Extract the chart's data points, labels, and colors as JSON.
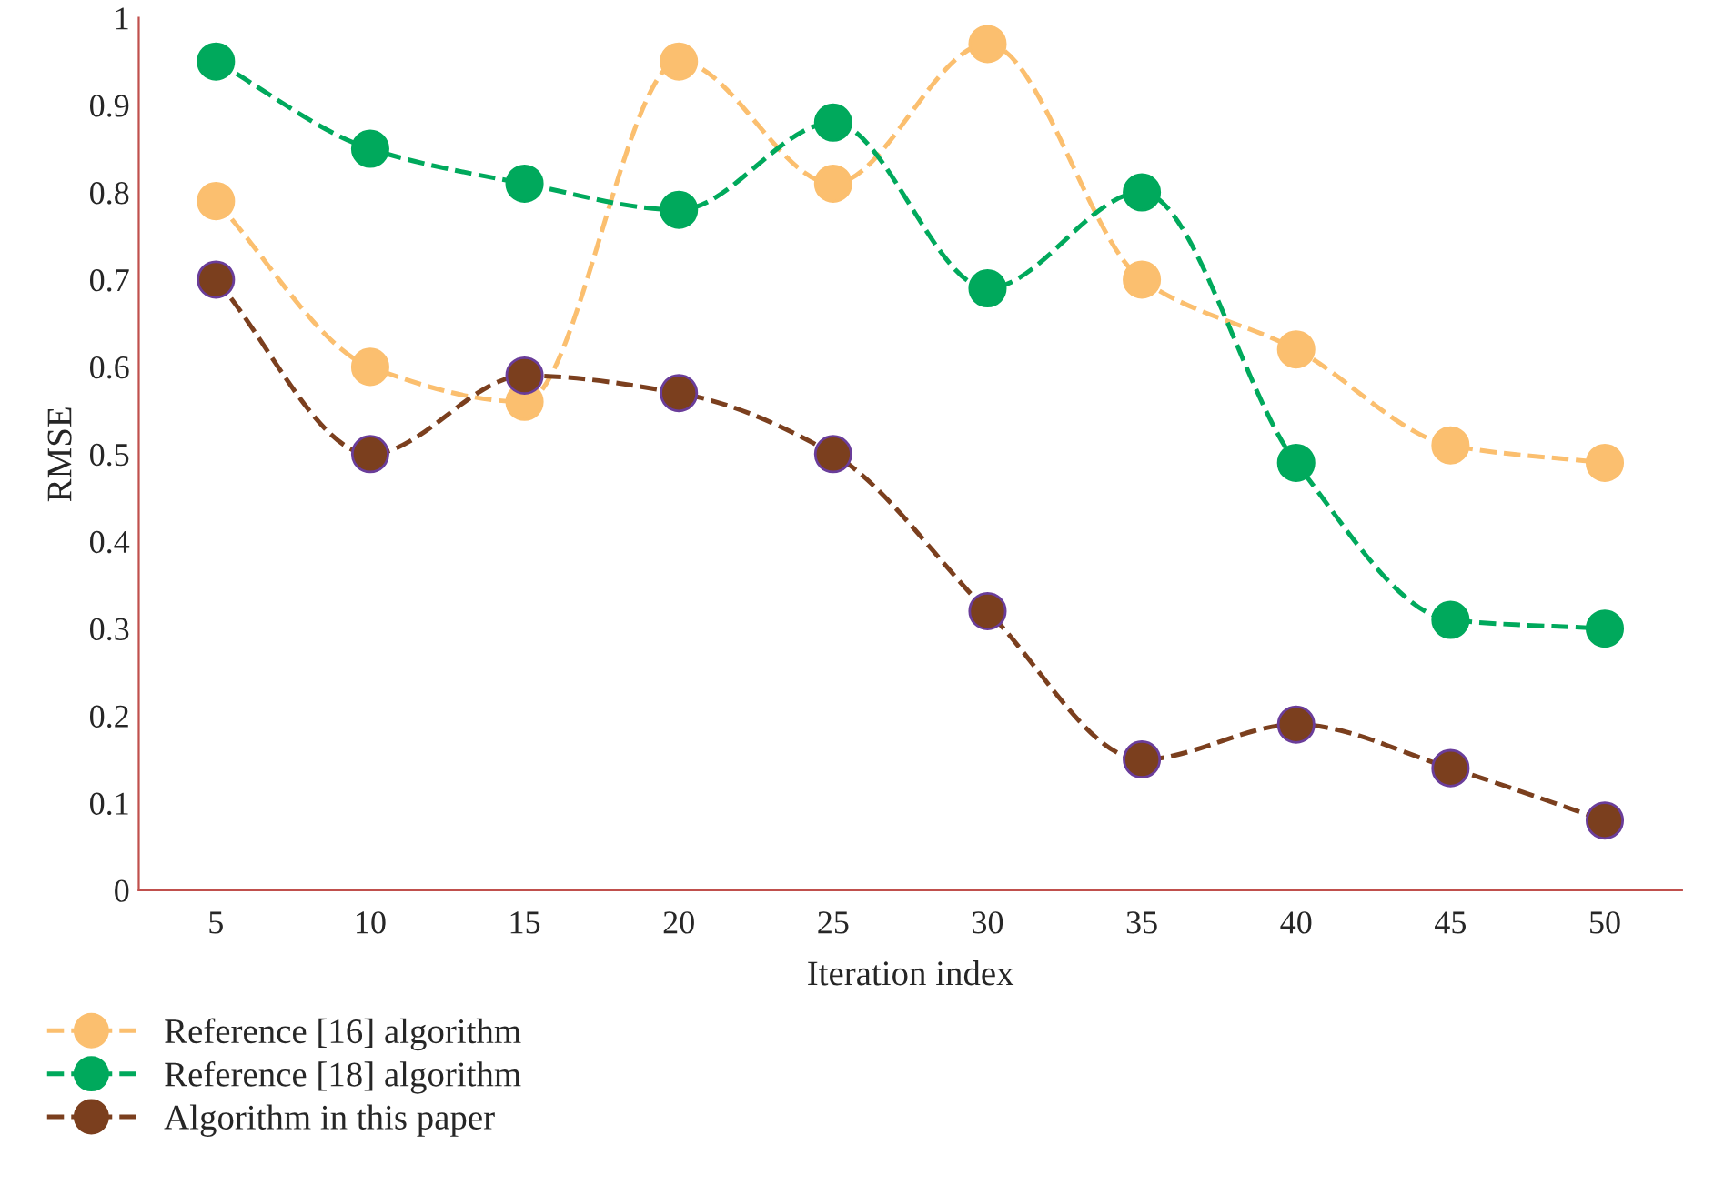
{
  "chart_data": {
    "type": "line",
    "xlabel": "Iteration index",
    "ylabel": "RMSE",
    "categories": [
      "5",
      "10",
      "15",
      "20",
      "25",
      "30",
      "35",
      "40",
      "45",
      "50"
    ],
    "series": [
      {
        "name": "Reference [16] algorithm",
        "color": "#fbbf6f",
        "values": [
          0.79,
          0.6,
          0.56,
          0.95,
          0.81,
          0.97,
          0.7,
          0.62,
          0.51,
          0.49
        ]
      },
      {
        "name": "Reference [18] algorithm",
        "color": "#00a95c",
        "values": [
          0.95,
          0.85,
          0.81,
          0.78,
          0.88,
          0.69,
          0.8,
          0.49,
          0.31,
          0.3
        ]
      },
      {
        "name": "Algorithm in this paper",
        "color": "#7b3f1e",
        "values": [
          0.7,
          0.5,
          0.59,
          0.57,
          0.5,
          0.32,
          0.15,
          0.19,
          0.14,
          0.08
        ]
      }
    ],
    "ylim": [
      0,
      1
    ],
    "yticks": [
      0,
      0.1,
      0.2,
      0.3,
      0.4,
      0.5,
      0.6,
      0.7,
      0.8,
      0.9,
      1
    ],
    "grid": false,
    "legend": "bottom left",
    "marker": "circle",
    "line_style": "dashed"
  }
}
